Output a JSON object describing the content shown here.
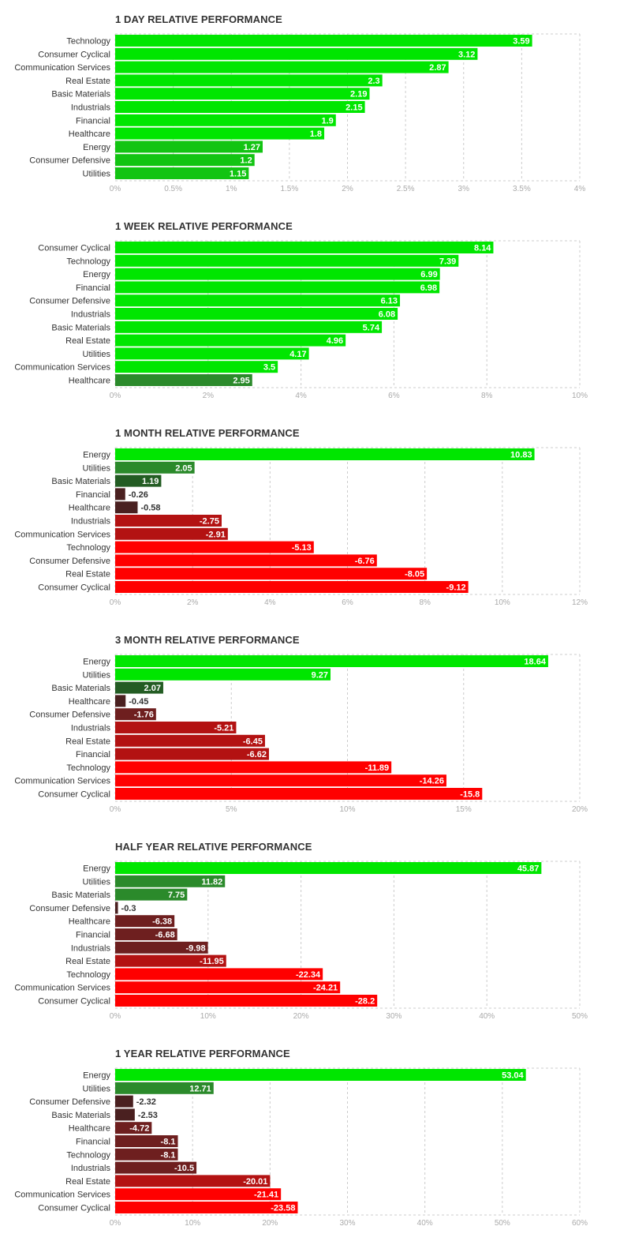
{
  "colors": {
    "pos_strong": "#00e600",
    "pos_mid": "#12c412",
    "pos_weak": "#2b8a2b",
    "pos_dark": "#235c23",
    "neg_dark": "#4a2020",
    "neg_mid": "#6e1f1f",
    "neg_strong": "#b31212",
    "neg_bright": "#ff0000",
    "grid": "#cccccc",
    "text": "#333333",
    "tick": "#aaaaaa"
  },
  "chart_data": [
    {
      "type": "bar",
      "orientation": "horizontal",
      "title": "1 DAY RELATIVE PERFORMANCE",
      "categories": [
        "Technology",
        "Consumer Cyclical",
        "Communication Services",
        "Real Estate",
        "Basic Materials",
        "Industrials",
        "Financial",
        "Healthcare",
        "Energy",
        "Consumer Defensive",
        "Utilities"
      ],
      "values": [
        3.59,
        3.12,
        2.87,
        2.3,
        2.19,
        2.15,
        1.9,
        1.8,
        1.27,
        1.2,
        1.15
      ],
      "value_labels": [
        "3.59",
        "3.12",
        "2.87",
        "2.3",
        "2.19",
        "2.15",
        "1.9",
        "1.8",
        "1.27",
        "1.2",
        "1.15"
      ],
      "xlim": [
        0,
        4
      ],
      "ticks": [
        0,
        0.5,
        1,
        1.5,
        2,
        2.5,
        3,
        3.5,
        4
      ],
      "tick_labels": [
        "0%",
        "0.5%",
        "1%",
        "1.5%",
        "2%",
        "2.5%",
        "3%",
        "3.5%",
        "4%"
      ]
    },
    {
      "type": "bar",
      "orientation": "horizontal",
      "title": "1 WEEK RELATIVE PERFORMANCE",
      "categories": [
        "Consumer Cyclical",
        "Technology",
        "Energy",
        "Financial",
        "Consumer Defensive",
        "Industrials",
        "Basic Materials",
        "Real Estate",
        "Utilities",
        "Communication Services",
        "Healthcare"
      ],
      "values": [
        8.14,
        7.39,
        6.99,
        6.98,
        6.13,
        6.08,
        5.74,
        4.96,
        4.17,
        3.5,
        2.95
      ],
      "value_labels": [
        "8.14",
        "7.39",
        "6.99",
        "6.98",
        "6.13",
        "6.08",
        "5.74",
        "4.96",
        "4.17",
        "3.5",
        "2.95"
      ],
      "xlim": [
        0,
        10
      ],
      "ticks": [
        0,
        2,
        4,
        6,
        8,
        10
      ],
      "tick_labels": [
        "0%",
        "2%",
        "4%",
        "6%",
        "8%",
        "10%"
      ]
    },
    {
      "type": "bar",
      "orientation": "horizontal",
      "title": "1 MONTH RELATIVE PERFORMANCE",
      "categories": [
        "Energy",
        "Utilities",
        "Basic Materials",
        "Financial",
        "Healthcare",
        "Industrials",
        "Communication Services",
        "Technology",
        "Consumer Defensive",
        "Real Estate",
        "Consumer Cyclical"
      ],
      "values": [
        10.83,
        2.05,
        1.19,
        -0.26,
        -0.58,
        -2.75,
        -2.91,
        -5.13,
        -6.76,
        -8.05,
        -9.12
      ],
      "value_labels": [
        "10.83",
        "2.05",
        "1.19",
        "-0.26",
        "-0.58",
        "-2.75",
        "-2.91",
        "-5.13",
        "-6.76",
        "-8.05",
        "-9.12"
      ],
      "xlim": [
        0,
        12
      ],
      "ticks": [
        0,
        2,
        4,
        6,
        8,
        10,
        12
      ],
      "tick_labels": [
        "0%",
        "2%",
        "4%",
        "6%",
        "8%",
        "10%",
        "12%"
      ]
    },
    {
      "type": "bar",
      "orientation": "horizontal",
      "title": "3 MONTH RELATIVE PERFORMANCE",
      "categories": [
        "Energy",
        "Utilities",
        "Basic Materials",
        "Healthcare",
        "Consumer Defensive",
        "Industrials",
        "Real Estate",
        "Financial",
        "Technology",
        "Communication Services",
        "Consumer Cyclical"
      ],
      "values": [
        18.64,
        9.27,
        2.07,
        -0.45,
        -1.76,
        -5.21,
        -6.45,
        -6.62,
        -11.89,
        -14.26,
        -15.8
      ],
      "value_labels": [
        "18.64",
        "9.27",
        "2.07",
        "-0.45",
        "-1.76",
        "-5.21",
        "-6.45",
        "-6.62",
        "-11.89",
        "-14.26",
        "-15.8"
      ],
      "xlim": [
        0,
        20
      ],
      "ticks": [
        0,
        5,
        10,
        15,
        20
      ],
      "tick_labels": [
        "0%",
        "5%",
        "10%",
        "15%",
        "20%"
      ]
    },
    {
      "type": "bar",
      "orientation": "horizontal",
      "title": "HALF YEAR RELATIVE PERFORMANCE",
      "categories": [
        "Energy",
        "Utilities",
        "Basic Materials",
        "Consumer Defensive",
        "Healthcare",
        "Financial",
        "Industrials",
        "Real Estate",
        "Technology",
        "Communication Services",
        "Consumer Cyclical"
      ],
      "values": [
        45.87,
        11.82,
        7.75,
        -0.3,
        -6.38,
        -6.68,
        -9.98,
        -11.95,
        -22.34,
        -24.21,
        -28.2
      ],
      "value_labels": [
        "45.87",
        "11.82",
        "7.75",
        "-0.3",
        "-6.38",
        "-6.68",
        "-9.98",
        "-11.95",
        "-22.34",
        "-24.21",
        "-28.2"
      ],
      "xlim": [
        0,
        50
      ],
      "ticks": [
        0,
        10,
        20,
        30,
        40,
        50
      ],
      "tick_labels": [
        "0%",
        "10%",
        "20%",
        "30%",
        "40%",
        "50%"
      ]
    },
    {
      "type": "bar",
      "orientation": "horizontal",
      "title": "1 YEAR RELATIVE PERFORMANCE",
      "categories": [
        "Energy",
        "Utilities",
        "Consumer Defensive",
        "Basic Materials",
        "Healthcare",
        "Financial",
        "Technology",
        "Industrials",
        "Real Estate",
        "Communication Services",
        "Consumer Cyclical"
      ],
      "values": [
        53.04,
        12.71,
        -2.32,
        -2.53,
        -4.72,
        -8.1,
        -8.1,
        -10.5,
        -20.01,
        -21.41,
        -23.58
      ],
      "value_labels": [
        "53.04",
        "12.71",
        "-2.32",
        "-2.53",
        "-4.72",
        "-8.1",
        "-8.1",
        "-10.5",
        "-20.01",
        "-21.41",
        "-23.58"
      ],
      "xlim": [
        0,
        60
      ],
      "ticks": [
        0,
        10,
        20,
        30,
        40,
        50,
        60
      ],
      "tick_labels": [
        "0%",
        "10%",
        "20%",
        "30%",
        "40%",
        "50%",
        "60%"
      ]
    }
  ]
}
